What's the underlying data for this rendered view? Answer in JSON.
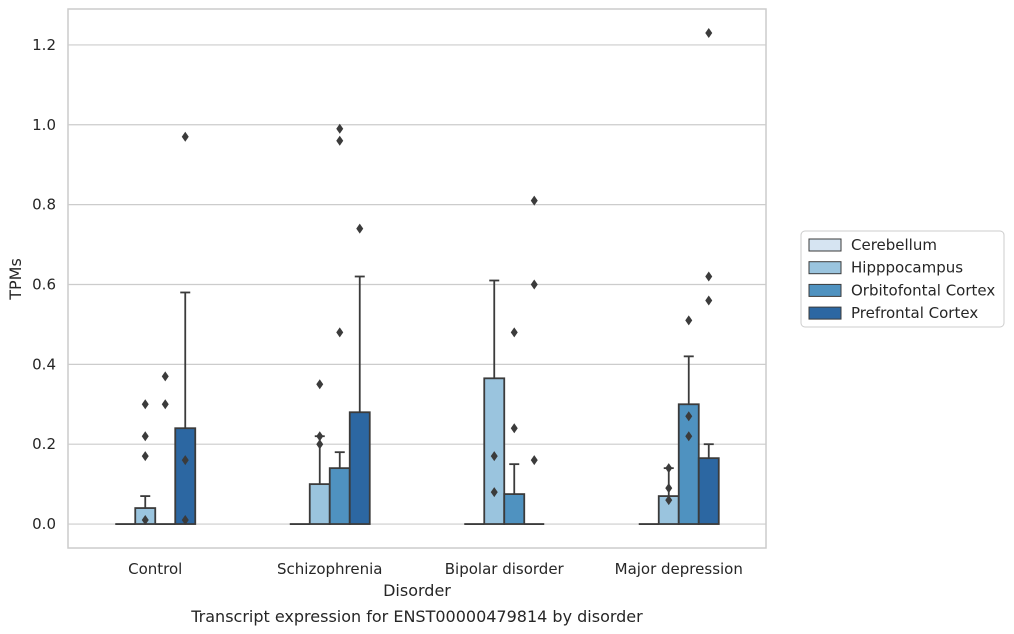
{
  "chart_data": {
    "type": "bar",
    "title": "",
    "caption": "Transcript expression for ENST00000479814 by disorder",
    "xlabel": "Disorder",
    "ylabel": "TPMs",
    "ylim": [
      -0.06,
      1.29
    ],
    "yticks": [
      "0.0",
      "0.2",
      "0.4",
      "0.6",
      "0.8",
      "1.0",
      "1.2"
    ],
    "grid": "horizontal",
    "legend_position": "right",
    "categories": [
      "Control",
      "Schizophrenia",
      "Bipolar disorder",
      "Major depression"
    ],
    "series": [
      {
        "name": "Cerebellum",
        "color": "#d6e4f2",
        "values": [
          0.0,
          0.0,
          0.0,
          0.0
        ],
        "error_upper": [
          null,
          null,
          null,
          null
        ],
        "outliers": [
          [],
          [],
          [],
          []
        ]
      },
      {
        "name": "Hipppocampus",
        "color": "#9ac4de",
        "values": [
          0.04,
          0.1,
          0.365,
          0.07
        ],
        "error_upper": [
          0.07,
          0.22,
          0.61,
          0.14
        ],
        "outliers": [
          [
            0.01,
            0.17,
            0.22,
            0.3
          ],
          [
            0.2,
            0.22,
            0.35
          ],
          [
            0.08,
            0.17
          ],
          [
            0.06,
            0.09,
            0.14
          ]
        ]
      },
      {
        "name": "Orbitofontal Cortex",
        "color": "#4f92c0",
        "values": [
          0.0,
          0.14,
          0.075,
          0.3
        ],
        "error_upper": [
          null,
          0.18,
          0.15,
          0.42
        ],
        "outliers": [
          [
            0.3,
            0.37
          ],
          [
            0.48,
            0.96,
            0.99
          ],
          [
            0.24,
            0.48
          ],
          [
            0.22,
            0.27,
            0.51
          ]
        ]
      },
      {
        "name": "Prefrontal Cortex",
        "color": "#2c67a2",
        "values": [
          0.24,
          0.28,
          0.0,
          0.165
        ],
        "error_upper": [
          0.58,
          0.62,
          null,
          0.2
        ],
        "outliers": [
          [
            0.01,
            0.16,
            0.97
          ],
          [
            0.74
          ],
          [
            0.16,
            0.6,
            0.81
          ],
          [
            0.56,
            0.62,
            1.23
          ]
        ]
      }
    ]
  }
}
